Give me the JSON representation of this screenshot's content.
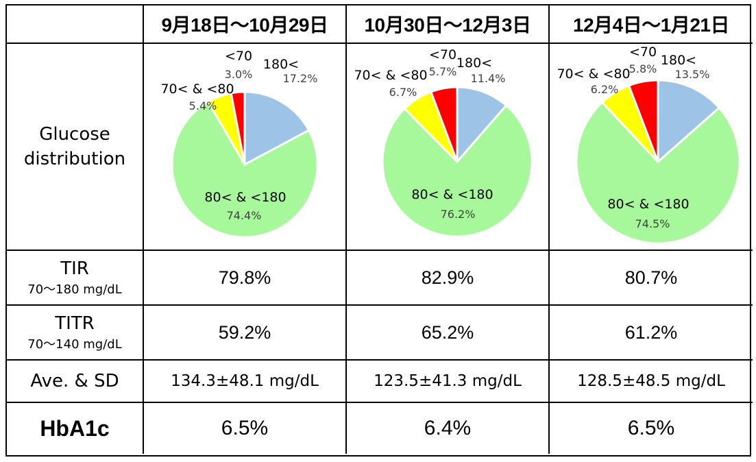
{
  "header": {
    "corner": "",
    "periods": [
      "9月18日～10月29日",
      "10月30日～12月3日",
      "12月4日～1月21日"
    ]
  },
  "rows": {
    "glucose_label": "Glucose\ndistribution",
    "glucose_line1": "Glucose",
    "glucose_line2": "distribution",
    "tir": {
      "title": "TIR",
      "sub": "70～180 mg/dL",
      "values": [
        "79.8%",
        "82.9%",
        "80.7%"
      ]
    },
    "titr": {
      "title": "TITR",
      "sub": "70～140 mg/dL",
      "values": [
        "59.2%",
        "65.2%",
        "61.2%"
      ]
    },
    "ave": {
      "title": "Ave. & SD",
      "values": [
        "134.3±48.1 mg/dL",
        "123.5±41.3 mg/dL",
        "128.5±48.5 mg/dL"
      ]
    },
    "hba1c": {
      "title": "HbA1c",
      "values": [
        "6.5%",
        "6.4%",
        "6.5%"
      ]
    }
  },
  "chart_data": [
    {
      "type": "pie",
      "categories": [
        "180<",
        "80< & <180",
        "70< & <80",
        "<70"
      ],
      "values": [
        17.2,
        74.4,
        5.4,
        3.0
      ],
      "labels": [
        "17.2%",
        "74.4%",
        "5.4%",
        "3.0%"
      ],
      "colors": [
        "#9dc3e6",
        "#a6f89a",
        "#ffff00",
        "#ff0000"
      ]
    },
    {
      "type": "pie",
      "categories": [
        "180<",
        "80< & <180",
        "70< & <80",
        "<70"
      ],
      "values": [
        11.4,
        76.2,
        6.7,
        5.7
      ],
      "labels": [
        "11.4%",
        "76.2%",
        "6.7%",
        "5.7%"
      ],
      "colors": [
        "#9dc3e6",
        "#a6f89a",
        "#ffff00",
        "#ff0000"
      ]
    },
    {
      "type": "pie",
      "categories": [
        "180<",
        "80< & <180",
        "70< & <80",
        "<70"
      ],
      "values": [
        13.5,
        74.5,
        6.2,
        5.8
      ],
      "labels": [
        "13.5%",
        "74.5%",
        "6.2%",
        "5.8%"
      ],
      "colors": [
        "#9dc3e6",
        "#a6f89a",
        "#ffff00",
        "#ff0000"
      ]
    }
  ]
}
